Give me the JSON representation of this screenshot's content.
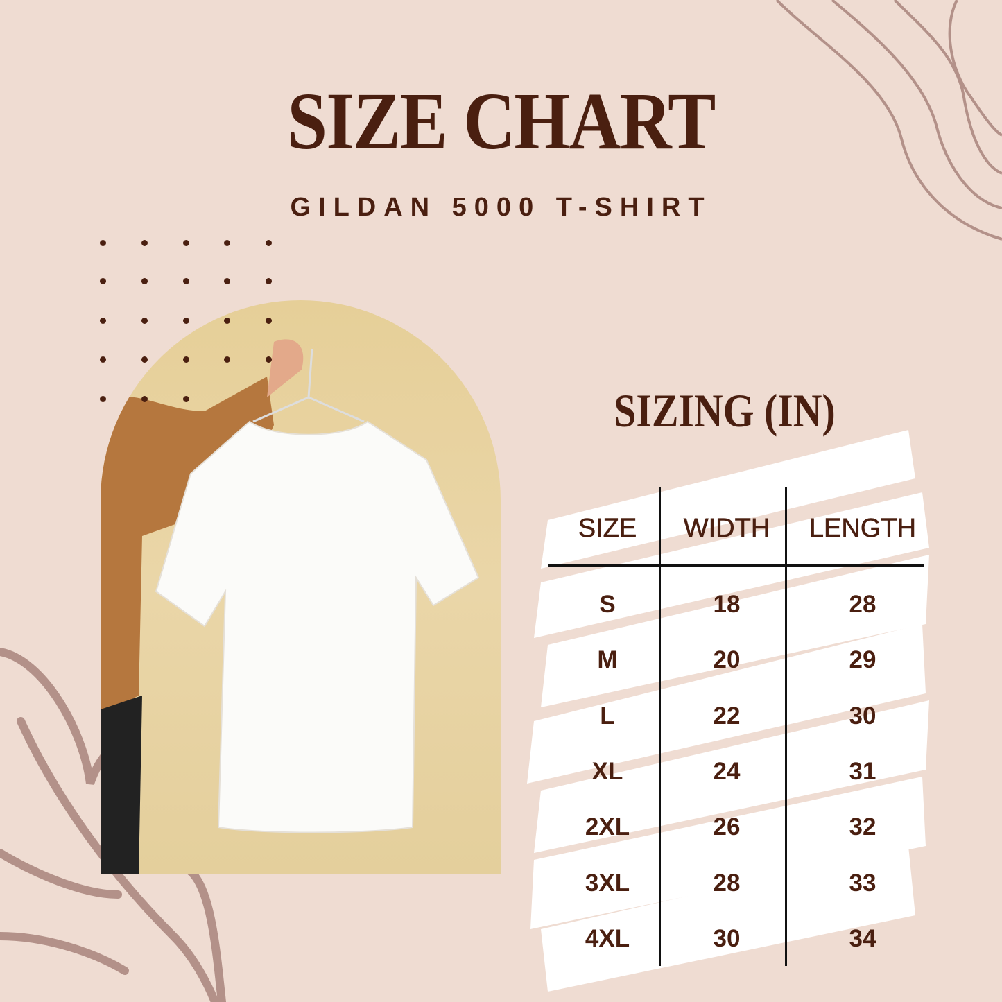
{
  "title": "SIZE CHART",
  "subtitle": "GILDAN 5000 T-SHIRT",
  "table": {
    "title": "SIZING (IN)",
    "headers": [
      "SIZE",
      "WIDTH",
      "LENGTH"
    ],
    "rows": [
      [
        "S",
        "18",
        "28"
      ],
      [
        "M",
        "20",
        "29"
      ],
      [
        "L",
        "22",
        "30"
      ],
      [
        "XL",
        "24",
        "31"
      ],
      [
        "2XL",
        "26",
        "32"
      ],
      [
        "3XL",
        "28",
        "33"
      ],
      [
        "4XL",
        "30",
        "34"
      ]
    ]
  },
  "colors": {
    "background": "#efdcd2",
    "text": "#4a1f10",
    "decor": "#b39189",
    "photo_bg": "#e6cf98"
  }
}
